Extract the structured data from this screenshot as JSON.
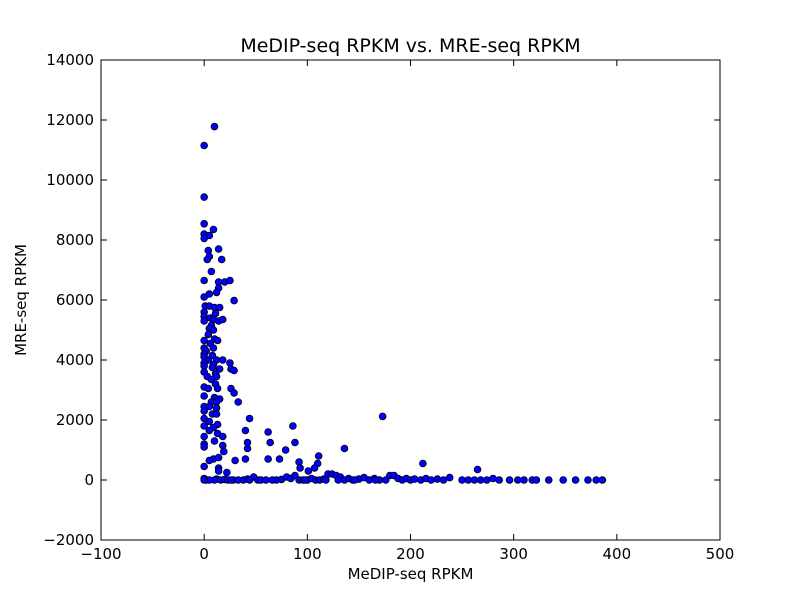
{
  "chart_data": {
    "type": "scatter",
    "title": "MeDIP-seq RPKM vs. MRE-seq RPKM",
    "xlabel": "MeDIP-seq RPKM",
    "ylabel": "MRE-seq RPKM",
    "xlim": [
      -100,
      500
    ],
    "ylim": [
      -2000,
      14000
    ],
    "xticks": [
      -100,
      0,
      100,
      200,
      300,
      400,
      500
    ],
    "yticks": [
      -2000,
      0,
      2000,
      4000,
      6000,
      8000,
      10000,
      12000,
      14000
    ],
    "grid": false,
    "marker_color": "#0000ff",
    "marker_edge": "#000000",
    "points": [
      [
        10,
        11780
      ],
      [
        0,
        11150
      ],
      [
        0,
        9430
      ],
      [
        0,
        8540
      ],
      [
        9,
        8350
      ],
      [
        0,
        8200
      ],
      [
        5,
        8150
      ],
      [
        0,
        8050
      ],
      [
        14,
        7700
      ],
      [
        4,
        7650
      ],
      [
        5,
        7450
      ],
      [
        3,
        7350
      ],
      [
        17,
        7350
      ],
      [
        7,
        6950
      ],
      [
        0,
        6650
      ],
      [
        14,
        6600
      ],
      [
        20,
        6600
      ],
      [
        25,
        6650
      ],
      [
        14,
        6400
      ],
      [
        12,
        6250
      ],
      [
        5,
        6200
      ],
      [
        0,
        6100
      ],
      [
        29,
        5980
      ],
      [
        1,
        5800
      ],
      [
        5,
        5800
      ],
      [
        10,
        5750
      ],
      [
        15,
        5750
      ],
      [
        0,
        5600
      ],
      [
        11,
        5550
      ],
      [
        0,
        5450
      ],
      [
        6,
        5400
      ],
      [
        9,
        5350
      ],
      [
        14,
        5300
      ],
      [
        18,
        5350
      ],
      [
        0,
        5300
      ],
      [
        7,
        5150
      ],
      [
        5,
        5050
      ],
      [
        9,
        5000
      ],
      [
        4,
        4850
      ],
      [
        10,
        4700
      ],
      [
        0,
        4650
      ],
      [
        13,
        4650
      ],
      [
        6,
        4550
      ],
      [
        0,
        4400
      ],
      [
        9,
        4400
      ],
      [
        2,
        4300
      ],
      [
        0,
        4200
      ],
      [
        8,
        4150
      ],
      [
        0,
        4100
      ],
      [
        4,
        4000
      ],
      [
        12,
        4000
      ],
      [
        18,
        4000
      ],
      [
        0,
        3900
      ],
      [
        9,
        3850
      ],
      [
        25,
        3900
      ],
      [
        0,
        3800
      ],
      [
        8,
        3750
      ],
      [
        15,
        3700
      ],
      [
        26,
        3700
      ],
      [
        29,
        3650
      ],
      [
        0,
        3600
      ],
      [
        11,
        3550
      ],
      [
        3,
        3450
      ],
      [
        12,
        3450
      ],
      [
        7,
        3350
      ],
      [
        11,
        3200
      ],
      [
        0,
        3100
      ],
      [
        4,
        3050
      ],
      [
        13,
        3050
      ],
      [
        26,
        3050
      ],
      [
        29,
        2900
      ],
      [
        0,
        2800
      ],
      [
        10,
        2750
      ],
      [
        15,
        2700
      ],
      [
        7,
        2600
      ],
      [
        12,
        2600
      ],
      [
        33,
        2600
      ],
      [
        0,
        2450
      ],
      [
        5,
        2450
      ],
      [
        12,
        2400
      ],
      [
        0,
        2300
      ],
      [
        8,
        2200
      ],
      [
        12,
        2200
      ],
      [
        44,
        2050
      ],
      [
        0,
        2050
      ],
      [
        5,
        1950
      ],
      [
        13,
        1850
      ],
      [
        0,
        1800
      ],
      [
        9,
        1750
      ],
      [
        86,
        1800
      ],
      [
        40,
        1650
      ],
      [
        5,
        1650
      ],
      [
        13,
        1550
      ],
      [
        62,
        1600
      ],
      [
        18,
        1450
      ],
      [
        0,
        1450
      ],
      [
        10,
        1300
      ],
      [
        42,
        1250
      ],
      [
        64,
        1250
      ],
      [
        88,
        1250
      ],
      [
        0,
        1200
      ],
      [
        18,
        1150
      ],
      [
        0,
        1100
      ],
      [
        42,
        1050
      ],
      [
        136,
        1050
      ],
      [
        79,
        1000
      ],
      [
        19,
        950
      ],
      [
        111,
        800
      ],
      [
        9,
        700
      ],
      [
        14,
        750
      ],
      [
        40,
        700
      ],
      [
        62,
        700
      ],
      [
        73,
        700
      ],
      [
        30,
        650
      ],
      [
        5,
        650
      ],
      [
        92,
        600
      ],
      [
        110,
        550
      ],
      [
        107,
        400
      ],
      [
        212,
        550
      ],
      [
        14,
        400
      ],
      [
        0,
        450
      ],
      [
        93,
        400
      ],
      [
        265,
        350
      ],
      [
        101,
        300
      ],
      [
        14,
        300
      ],
      [
        22,
        250
      ],
      [
        0,
        50
      ],
      [
        2,
        0
      ],
      [
        12,
        30
      ],
      [
        16,
        0
      ],
      [
        20,
        20
      ],
      [
        23,
        0
      ],
      [
        28,
        0
      ],
      [
        33,
        0
      ],
      [
        38,
        0
      ],
      [
        42,
        30
      ],
      [
        48,
        100
      ],
      [
        52,
        0
      ],
      [
        55,
        0
      ],
      [
        60,
        0
      ],
      [
        70,
        0
      ],
      [
        75,
        20
      ],
      [
        80,
        100
      ],
      [
        84,
        50
      ],
      [
        88,
        150
      ],
      [
        92,
        0
      ],
      [
        96,
        0
      ],
      [
        100,
        0
      ],
      [
        104,
        50
      ],
      [
        108,
        0
      ],
      [
        112,
        0
      ],
      [
        116,
        30
      ],
      [
        120,
        200
      ],
      [
        124,
        200
      ],
      [
        128,
        150
      ],
      [
        132,
        100
      ],
      [
        136,
        0
      ],
      [
        140,
        50
      ],
      [
        144,
        0
      ],
      [
        150,
        30
      ],
      [
        155,
        80
      ],
      [
        160,
        0
      ],
      [
        165,
        50
      ],
      [
        170,
        0
      ],
      [
        173,
        2120
      ],
      [
        176,
        0
      ],
      [
        180,
        150
      ],
      [
        184,
        150
      ],
      [
        188,
        50
      ],
      [
        192,
        0
      ],
      [
        196,
        50
      ],
      [
        200,
        0
      ],
      [
        204,
        30
      ],
      [
        210,
        0
      ],
      [
        215,
        50
      ],
      [
        220,
        0
      ],
      [
        226,
        30
      ],
      [
        232,
        0
      ],
      [
        238,
        80
      ],
      [
        250,
        0
      ],
      [
        256,
        0
      ],
      [
        262,
        0
      ],
      [
        268,
        0
      ],
      [
        274,
        0
      ],
      [
        280,
        50
      ],
      [
        286,
        0
      ],
      [
        296,
        0
      ],
      [
        304,
        0
      ],
      [
        310,
        0
      ],
      [
        318,
        0
      ],
      [
        322,
        0
      ],
      [
        334,
        0
      ],
      [
        348,
        0
      ],
      [
        360,
        0
      ],
      [
        372,
        0
      ],
      [
        380,
        0
      ],
      [
        386,
        0
      ],
      [
        166,
        0
      ],
      [
        146,
        0
      ],
      [
        130,
        0
      ],
      [
        118,
        0
      ],
      [
        98,
        0
      ],
      [
        66,
        0
      ],
      [
        44,
        0
      ],
      [
        26,
        0
      ],
      [
        10,
        0
      ],
      [
        5,
        0
      ],
      [
        0,
        0
      ]
    ]
  }
}
